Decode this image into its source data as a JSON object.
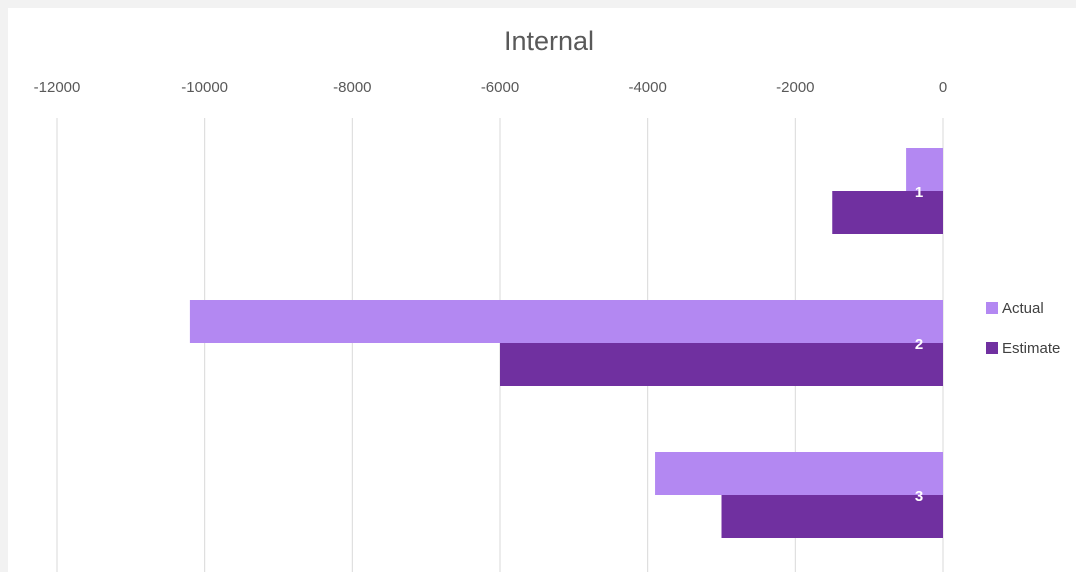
{
  "chart_data": {
    "type": "bar",
    "orientation": "horizontal",
    "title": "Internal",
    "categories": [
      "1",
      "2",
      "3"
    ],
    "series": [
      {
        "name": "Actual",
        "values": [
          -500,
          -10200,
          -3900
        ],
        "color": "#b388f2"
      },
      {
        "name": "Estimate",
        "values": [
          -1500,
          -6000,
          -3000
        ],
        "color": "#7030a0"
      }
    ],
    "xlim": [
      -12000,
      0
    ],
    "xticks": [
      "-12000",
      "-10000",
      "-8000",
      "-6000",
      "-4000",
      "-2000",
      "0"
    ],
    "xtick_values": [
      -12000,
      -10000,
      -8000,
      -6000,
      -4000,
      -2000,
      0
    ],
    "axis_position": "top",
    "grid": true,
    "legend": "right",
    "xlabel": "",
    "ylabel": ""
  }
}
